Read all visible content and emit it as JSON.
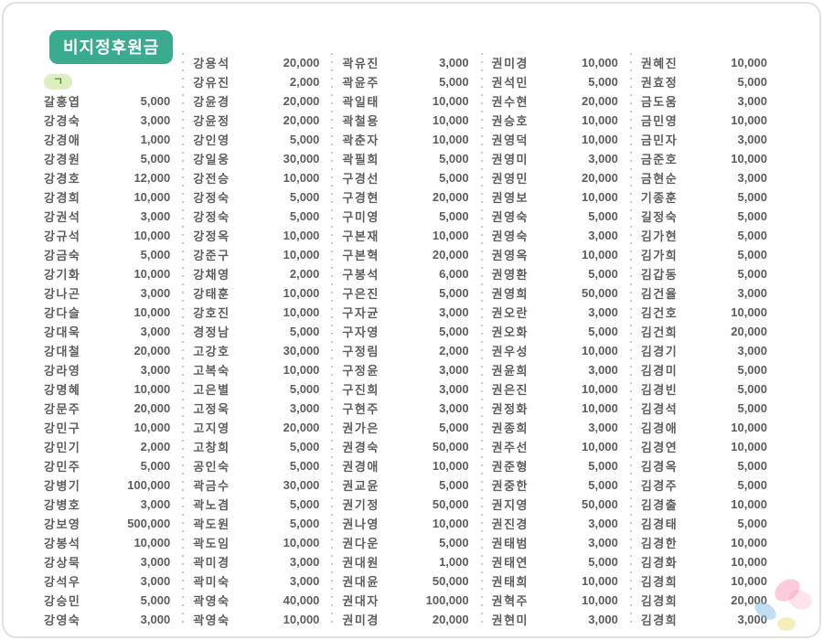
{
  "header": {
    "title": "비지정후원금",
    "section_label": "ㄱ"
  },
  "colors": {
    "accent": "#3aab8e",
    "pill-bg": "#ddeec0",
    "pill-text": "#55922f",
    "text": "#5d5d5d",
    "dots": "#c9c9c9",
    "frame": "#e0e0e0"
  },
  "donations": {
    "columns": [
      {
        "leading_blank_rows": 2,
        "entries": [
          [
            "갈홍엽",
            "5,000"
          ],
          [
            "강경숙",
            "3,000"
          ],
          [
            "강경애",
            "1,000"
          ],
          [
            "강경원",
            "5,000"
          ],
          [
            "강경호",
            "12,000"
          ],
          [
            "강경희",
            "10,000"
          ],
          [
            "강권석",
            "3,000"
          ],
          [
            "강규석",
            "10,000"
          ],
          [
            "강금숙",
            "5,000"
          ],
          [
            "강기화",
            "10,000"
          ],
          [
            "강나곤",
            "3,000"
          ],
          [
            "강다슬",
            "10,000"
          ],
          [
            "강대욱",
            "3,000"
          ],
          [
            "강대철",
            "20,000"
          ],
          [
            "강라영",
            "3,000"
          ],
          [
            "강명혜",
            "10,000"
          ],
          [
            "강문주",
            "20,000"
          ],
          [
            "강민구",
            "10,000"
          ],
          [
            "강민기",
            "2,000"
          ],
          [
            "강민주",
            "5,000"
          ],
          [
            "강병기",
            "100,000"
          ],
          [
            "강병호",
            "3,000"
          ],
          [
            "강보영",
            "500,000"
          ],
          [
            "강봉석",
            "10,000"
          ],
          [
            "강상묵",
            "3,000"
          ],
          [
            "강석우",
            "3,000"
          ],
          [
            "강승민",
            "5,000"
          ],
          [
            "강영숙",
            "3,000"
          ]
        ]
      },
      {
        "leading_blank_rows": 0,
        "entries": [
          [
            "강용석",
            "20,000"
          ],
          [
            "강유진",
            "2,000"
          ],
          [
            "강윤경",
            "20,000"
          ],
          [
            "강윤정",
            "20,000"
          ],
          [
            "강인영",
            "5,000"
          ],
          [
            "강일웅",
            "30,000"
          ],
          [
            "강전승",
            "10,000"
          ],
          [
            "강정숙",
            "5,000"
          ],
          [
            "강정숙",
            "5,000"
          ],
          [
            "강정옥",
            "10,000"
          ],
          [
            "강준구",
            "10,000"
          ],
          [
            "강채영",
            "2,000"
          ],
          [
            "강태훈",
            "10,000"
          ],
          [
            "강호진",
            "10,000"
          ],
          [
            "경정남",
            "5,000"
          ],
          [
            "고강호",
            "30,000"
          ],
          [
            "고복숙",
            "10,000"
          ],
          [
            "고은별",
            "5,000"
          ],
          [
            "고정욱",
            "3,000"
          ],
          [
            "고지영",
            "20,000"
          ],
          [
            "고창희",
            "5,000"
          ],
          [
            "공인숙",
            "5,000"
          ],
          [
            "곽금수",
            "30,000"
          ],
          [
            "곽노겸",
            "5,000"
          ],
          [
            "곽도원",
            "5,000"
          ],
          [
            "곽도임",
            "10,000"
          ],
          [
            "곽미경",
            "3,000"
          ],
          [
            "곽미숙",
            "3,000"
          ],
          [
            "곽영숙",
            "40,000"
          ],
          [
            "곽영숙",
            "10,000"
          ]
        ]
      },
      {
        "leading_blank_rows": 0,
        "entries": [
          [
            "곽유진",
            "3,000"
          ],
          [
            "곽윤주",
            "5,000"
          ],
          [
            "곽일태",
            "10,000"
          ],
          [
            "곽철용",
            "10,000"
          ],
          [
            "곽춘자",
            "10,000"
          ],
          [
            "곽필희",
            "5,000"
          ],
          [
            "구경선",
            "5,000"
          ],
          [
            "구경현",
            "20,000"
          ],
          [
            "구미영",
            "5,000"
          ],
          [
            "구본재",
            "10,000"
          ],
          [
            "구본혁",
            "20,000"
          ],
          [
            "구봉석",
            "6,000"
          ],
          [
            "구은진",
            "5,000"
          ],
          [
            "구자균",
            "3,000"
          ],
          [
            "구자영",
            "5,000"
          ],
          [
            "구정림",
            "2,000"
          ],
          [
            "구정윤",
            "3,000"
          ],
          [
            "구진희",
            "3,000"
          ],
          [
            "구현주",
            "3,000"
          ],
          [
            "권가은",
            "5,000"
          ],
          [
            "권경숙",
            "50,000"
          ],
          [
            "권경애",
            "10,000"
          ],
          [
            "권교윤",
            "5,000"
          ],
          [
            "권기정",
            "50,000"
          ],
          [
            "권나영",
            "10,000"
          ],
          [
            "권다운",
            "5,000"
          ],
          [
            "권대원",
            "1,000"
          ],
          [
            "권대윤",
            "50,000"
          ],
          [
            "권대자",
            "100,000"
          ],
          [
            "권미경",
            "20,000"
          ]
        ]
      },
      {
        "leading_blank_rows": 0,
        "entries": [
          [
            "권미경",
            "10,000"
          ],
          [
            "권석민",
            "5,000"
          ],
          [
            "권수현",
            "20,000"
          ],
          [
            "권승호",
            "10,000"
          ],
          [
            "권영덕",
            "10,000"
          ],
          [
            "권영미",
            "3,000"
          ],
          [
            "권영민",
            "20,000"
          ],
          [
            "권영보",
            "10,000"
          ],
          [
            "권영숙",
            "5,000"
          ],
          [
            "권영숙",
            "3,000"
          ],
          [
            "권영옥",
            "10,000"
          ],
          [
            "권영환",
            "5,000"
          ],
          [
            "권영희",
            "50,000"
          ],
          [
            "권오란",
            "3,000"
          ],
          [
            "권오화",
            "5,000"
          ],
          [
            "권우성",
            "10,000"
          ],
          [
            "권윤희",
            "3,000"
          ],
          [
            "권은진",
            "10,000"
          ],
          [
            "권정화",
            "10,000"
          ],
          [
            "권종희",
            "3,000"
          ],
          [
            "권주선",
            "10,000"
          ],
          [
            "권준형",
            "5,000"
          ],
          [
            "권중한",
            "5,000"
          ],
          [
            "권지영",
            "50,000"
          ],
          [
            "권진경",
            "3,000"
          ],
          [
            "권태범",
            "3,000"
          ],
          [
            "권태연",
            "5,000"
          ],
          [
            "권태희",
            "10,000"
          ],
          [
            "권혁주",
            "10,000"
          ],
          [
            "권현미",
            "3,000"
          ]
        ]
      },
      {
        "leading_blank_rows": 0,
        "entries": [
          [
            "권혜진",
            "10,000"
          ],
          [
            "권효정",
            "5,000"
          ],
          [
            "금도움",
            "3,000"
          ],
          [
            "금민영",
            "10,000"
          ],
          [
            "금민자",
            "3,000"
          ],
          [
            "금준호",
            "10,000"
          ],
          [
            "금현순",
            "3,000"
          ],
          [
            "기종훈",
            "5,000"
          ],
          [
            "길정숙",
            "5,000"
          ],
          [
            "김가현",
            "5,000"
          ],
          [
            "김가희",
            "5,000"
          ],
          [
            "김갑동",
            "5,000"
          ],
          [
            "김건율",
            "3,000"
          ],
          [
            "김건호",
            "10,000"
          ],
          [
            "김건희",
            "20,000"
          ],
          [
            "김경기",
            "3,000"
          ],
          [
            "김경미",
            "5,000"
          ],
          [
            "김경빈",
            "5,000"
          ],
          [
            "김경석",
            "5,000"
          ],
          [
            "김경애",
            "10,000"
          ],
          [
            "김경연",
            "10,000"
          ],
          [
            "김경옥",
            "5,000"
          ],
          [
            "김경주",
            "5,000"
          ],
          [
            "김경출",
            "10,000"
          ],
          [
            "김경태",
            "5,000"
          ],
          [
            "김경한",
            "10,000"
          ],
          [
            "김경화",
            "10,000"
          ],
          [
            "김경희",
            "10,000"
          ],
          [
            "김경희",
            "20,000"
          ],
          [
            "김경희",
            "3,000"
          ]
        ]
      }
    ]
  },
  "decoration": {
    "type": "flower-petals"
  }
}
